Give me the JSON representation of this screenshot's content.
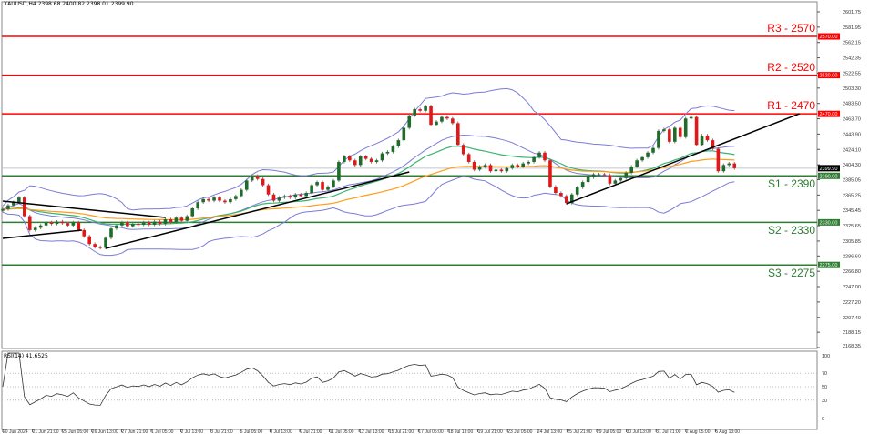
{
  "header": {
    "symbol_info": "XAUUSD,H4  2398.68 2400.82 2398.01 2399.90"
  },
  "rsi": {
    "label": "RSI(14) 41.6525",
    "value": 41.6525,
    "levels": [
      70,
      50,
      30
    ],
    "axis": [
      "100",
      "70",
      "50",
      "30",
      "0"
    ]
  },
  "colors": {
    "resistance": "#ff0000",
    "support": "#2e7d32",
    "bull": "#1e6b2a",
    "bear": "#e01818",
    "bollinger": "#7b7bd6",
    "ma_fast": "#3cb371",
    "ma_slow": "#ff9c1a",
    "trendline": "#000000"
  },
  "chart_data": {
    "type": "candlestick",
    "symbol": "XAUUSD",
    "timeframe": "H4",
    "ylim": [
      2168.35,
      2601.75
    ],
    "y_ticks": [
      "2601.75",
      "2581.95",
      "2562.15",
      "2542.35",
      "2522.55",
      "2503.30",
      "2483.50",
      "2463.70",
      "2443.90",
      "2424.10",
      "2404.30",
      "2385.05",
      "2365.25",
      "2345.45",
      "2325.65",
      "2305.85",
      "2286.60",
      "2266.80",
      "2247.00",
      "2227.20",
      "2207.40",
      "2188.15",
      "2168.35"
    ],
    "x_ticks": [
      "20 Jun 2024",
      "21 Jun 21:00",
      "25 Jun 05:00",
      "26 Jun 13:00",
      "27 Jun 21:00",
      "1 Jul 05:00",
      "2 Jul 13:00",
      "3 Jul 21:00",
      "5 Jul 05:00",
      "8 Jul 13:00",
      "9 Jul 21:00",
      "11 Jul 05:00",
      "12 Jul 13:00",
      "15 Jul 21:00",
      "17 Jul 05:00",
      "18 Jul 13:00",
      "19 Jul 21:00",
      "23 Jul 05:00",
      "24 Jul 13:00",
      "25 Jul 21:00",
      "29 Jul 05:00",
      "30 Jul 13:00",
      "31 Jul 21:00",
      "2 Aug 05:00",
      "5 Aug 13:00"
    ],
    "closes": [
      2347,
      2352,
      2356,
      2362,
      2338,
      2320,
      2323,
      2326,
      2330,
      2328,
      2331,
      2329,
      2326,
      2330,
      2320,
      2312,
      2302,
      2298,
      2297,
      2310,
      2322,
      2326,
      2330,
      2325,
      2328,
      2327,
      2330,
      2327,
      2331,
      2328,
      2334,
      2330,
      2336,
      2332,
      2338,
      2348,
      2356,
      2360,
      2358,
      2362,
      2358,
      2356,
      2360,
      2364,
      2372,
      2384,
      2390,
      2386,
      2378,
      2366,
      2358,
      2362,
      2364,
      2362,
      2366,
      2364,
      2368,
      2378,
      2382,
      2372,
      2376,
      2384,
      2408,
      2415,
      2410,
      2404,
      2415,
      2412,
      2408,
      2410,
      2419,
      2421,
      2428,
      2436,
      2452,
      2468,
      2476,
      2474,
      2480,
      2456,
      2460,
      2466,
      2464,
      2458,
      2430,
      2418,
      2408,
      2398,
      2402,
      2404,
      2396,
      2398,
      2396,
      2400,
      2404,
      2402,
      2406,
      2408,
      2414,
      2420,
      2410,
      2376,
      2368,
      2364,
      2355,
      2366,
      2375,
      2382,
      2388,
      2392,
      2392,
      2391,
      2380,
      2384,
      2387,
      2394,
      2402,
      2410,
      2414,
      2420,
      2426,
      2448,
      2450,
      2434,
      2452,
      2440,
      2464,
      2466,
      2430,
      2442,
      2436,
      2425,
      2396,
      2404,
      2406,
      2399.9
    ],
    "current_price": {
      "label": "2399.90",
      "value": 2399.9
    },
    "levels": [
      {
        "name": "R3 - 2570",
        "tag": "2570.00",
        "value": 2570,
        "kind": "resistance"
      },
      {
        "name": "R2 - 2520",
        "tag": "2520.00",
        "value": 2520,
        "kind": "resistance"
      },
      {
        "name": "R1 - 2470",
        "tag": "2470.00",
        "value": 2470,
        "kind": "resistance"
      },
      {
        "name": "S1 - 2390",
        "tag": "2390.00",
        "value": 2390,
        "kind": "support"
      },
      {
        "name": "S2 - 2330",
        "tag": "2330.00",
        "value": 2330,
        "kind": "support"
      },
      {
        "name": "S3 - 2275",
        "tag": "2275.00",
        "value": 2275,
        "kind": "support"
      }
    ],
    "trendlines": [
      {
        "from": [
          0,
          2357.5
        ],
        "to": [
          30,
          2336.3
        ]
      },
      {
        "from": [
          0,
          2309.3
        ],
        "to": [
          14.6,
          2319.9
        ]
      },
      {
        "from": [
          19,
          2296.4
        ],
        "to": [
          75,
          2395.0
        ]
      },
      {
        "from": [
          104,
          2353.9
        ],
        "to": [
          147,
          2470.2
        ]
      }
    ],
    "indicators": [
      "Bollinger Bands(20,2)",
      "MA 50",
      "MA 100",
      "RSI(14)"
    ],
    "grid": false
  }
}
